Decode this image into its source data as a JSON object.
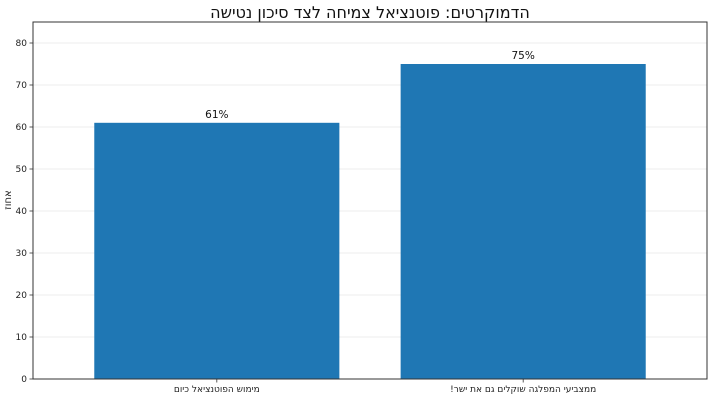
{
  "chart_data": {
    "type": "bar",
    "title": "הדמוקרטים: פוטנציאל צמיחה לצד סיכון נטישה",
    "xlabel": "",
    "ylabel": "אחוז",
    "categories": [
      "מימוש הפוטנציאל כיום",
      "ממצביעי המפלגה שוקלים גם את ישר!"
    ],
    "values": [
      61,
      75
    ],
    "data_labels": [
      "61%",
      "75%"
    ],
    "ylim": [
      0,
      85
    ],
    "yticks": [
      0,
      10,
      20,
      30,
      40,
      50,
      60,
      70,
      80
    ],
    "grid": true,
    "bar_color": "#1f77b4"
  }
}
